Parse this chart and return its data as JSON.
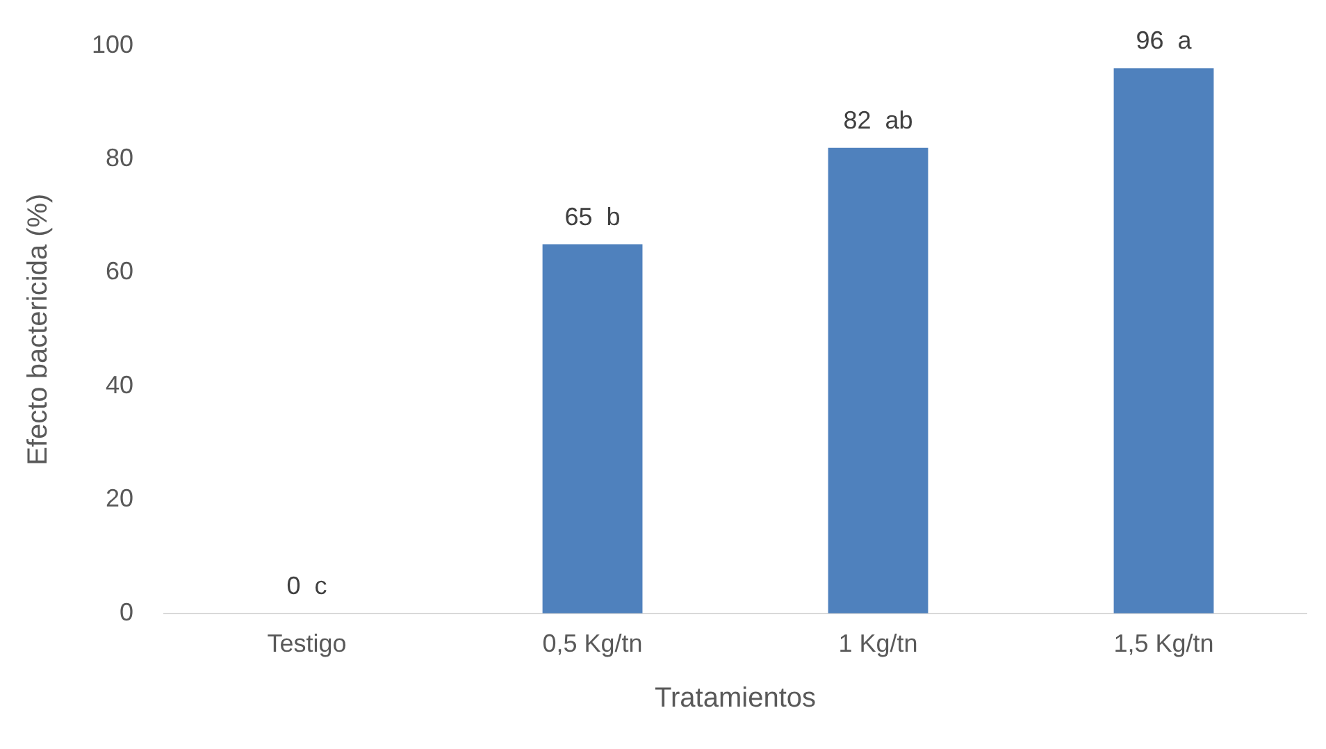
{
  "chart_data": {
    "type": "bar",
    "xlabel": "Tratamientos",
    "ylabel": "Efecto bactericida (%)",
    "categories": [
      "Testigo",
      "0,5 Kg/tn",
      "1 Kg/tn",
      "1,5 Kg/tn"
    ],
    "values": [
      0,
      65,
      82,
      96
    ],
    "color": "#4f81bd",
    "value_labels": [
      "0  c",
      "65  b",
      "82  ab",
      "96  a"
    ],
    "ylim": [
      0,
      100
    ],
    "yticks": [
      0,
      20,
      40,
      60,
      80,
      100
    ],
    "grid": false,
    "legend": false
  }
}
